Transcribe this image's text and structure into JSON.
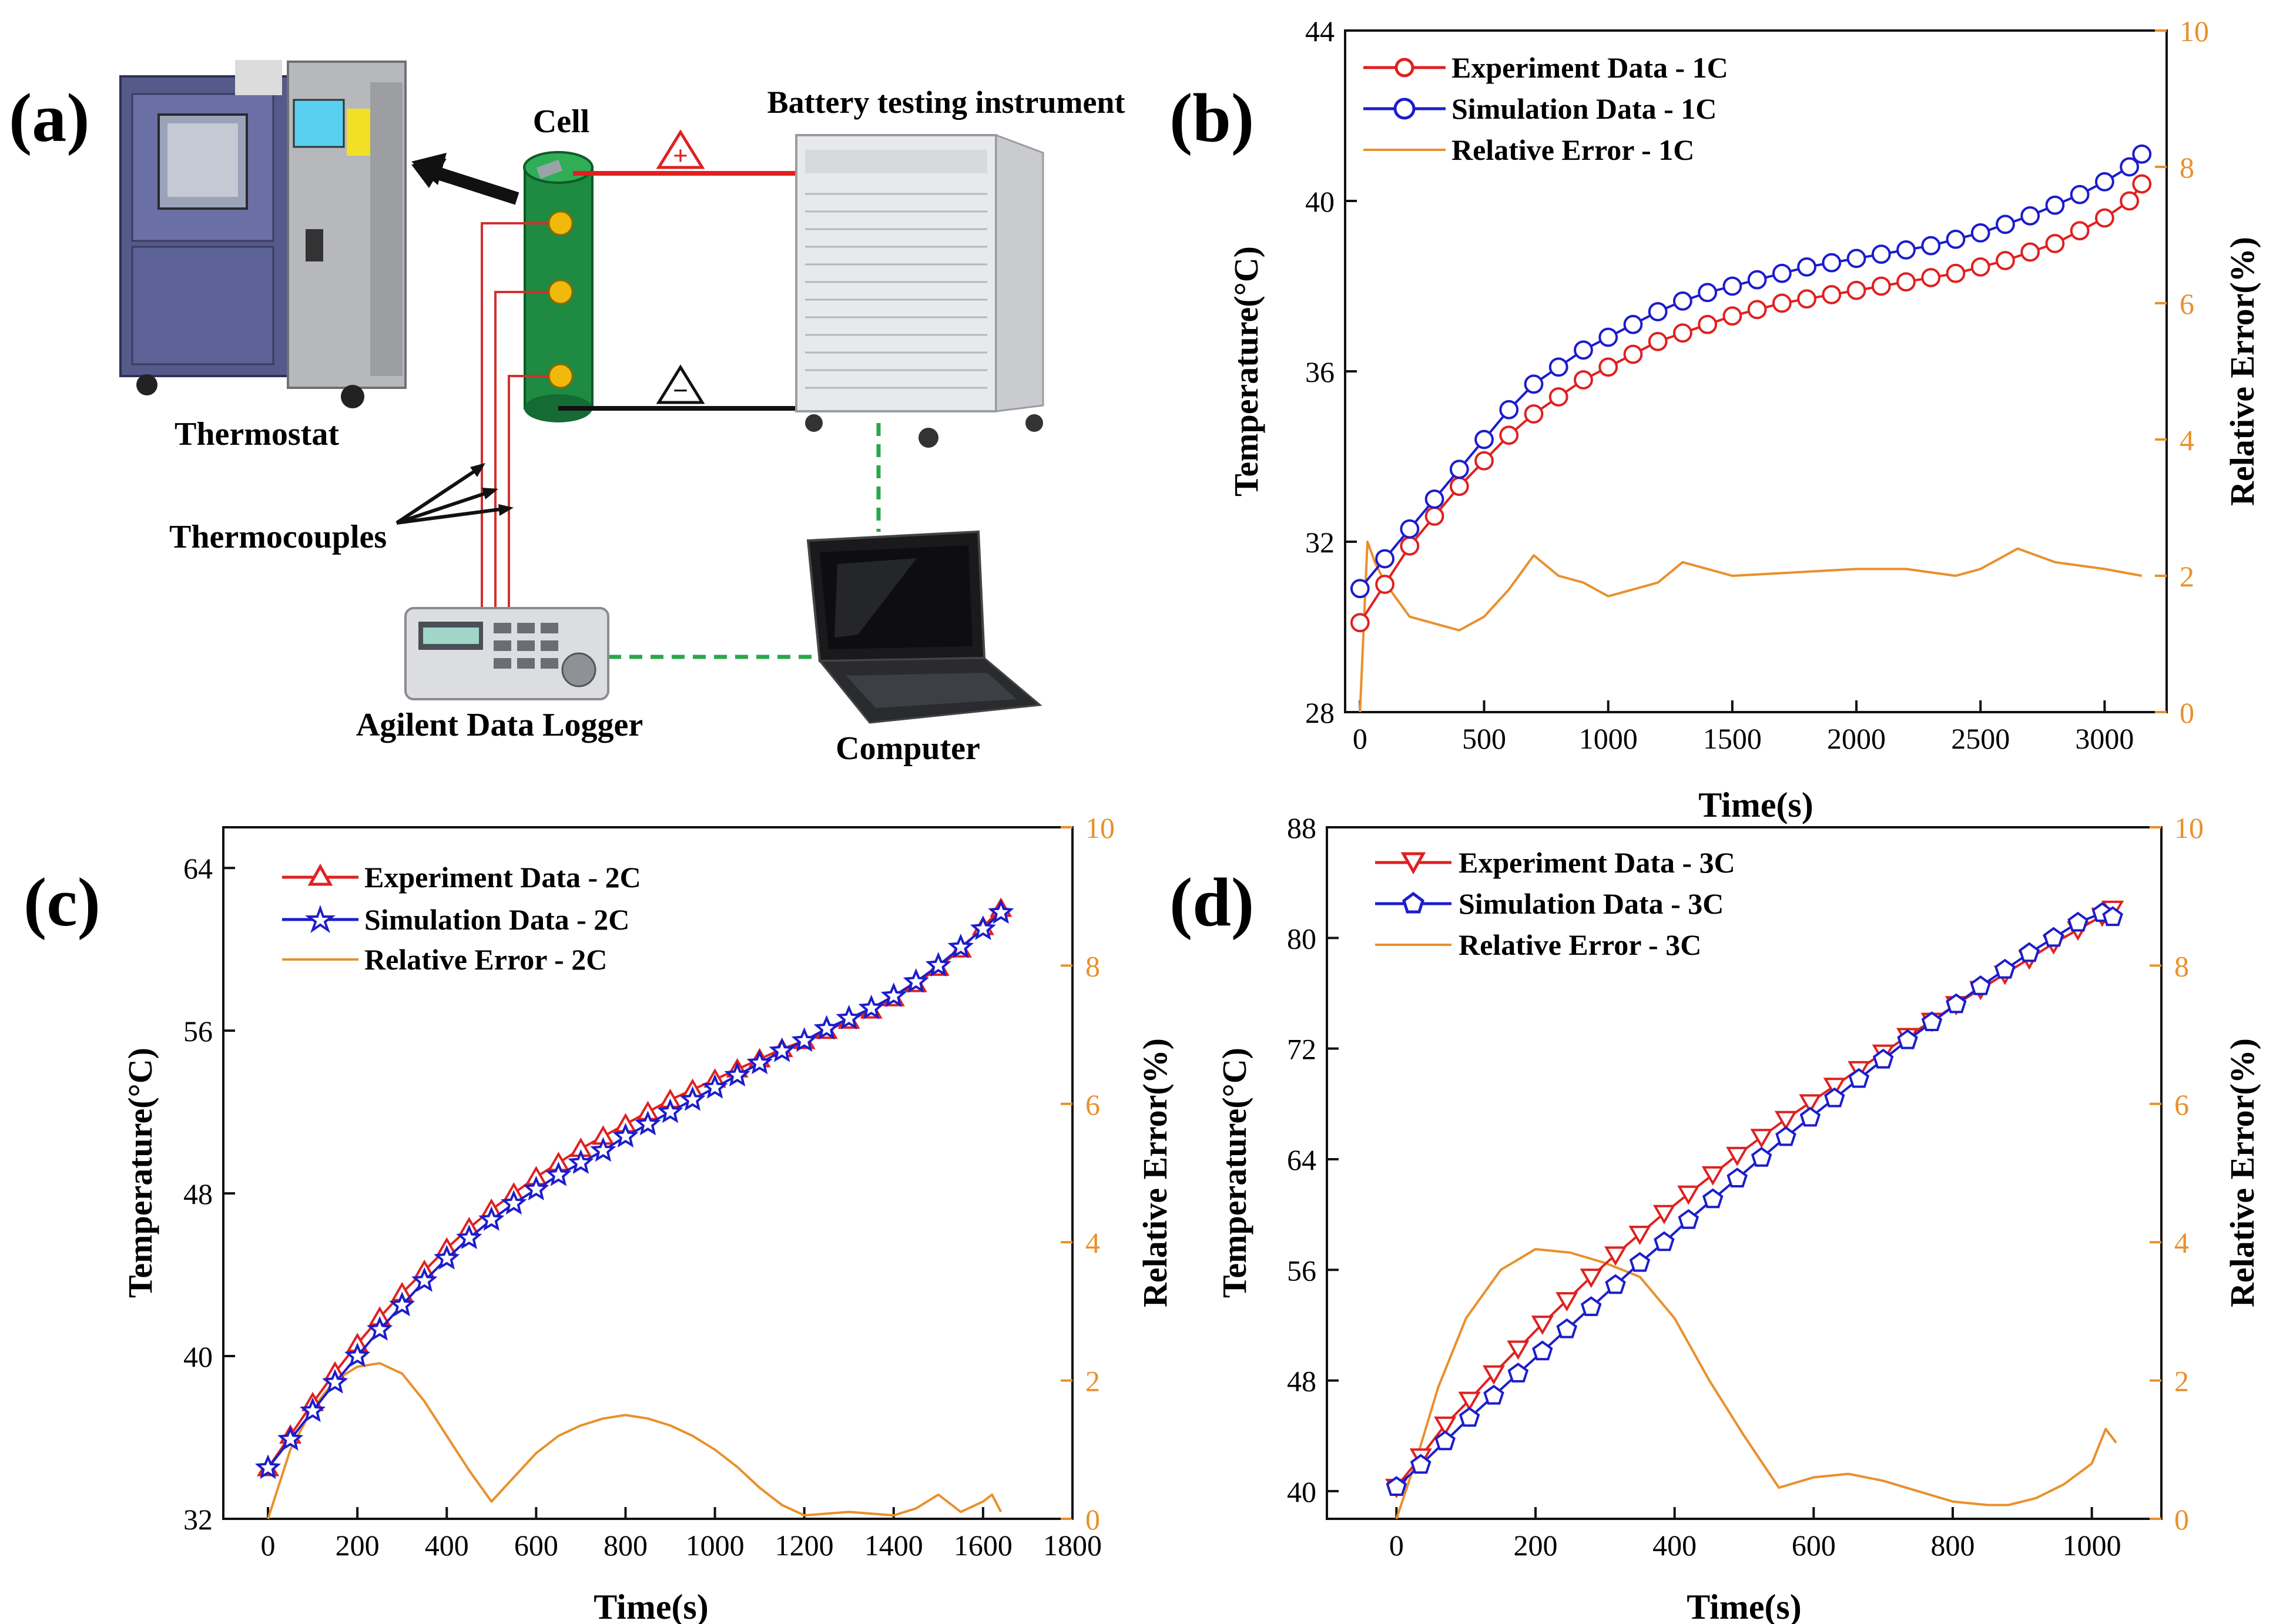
{
  "panel_a": {
    "label": "(a)",
    "thermostat_label": "Thermostat",
    "cell_label": "Cell",
    "instrument_label": "Battery testing instrument",
    "thermocouples_label": "Thermocouples",
    "logger_label": "Agilent Data Logger",
    "computer_label": "Computer",
    "plus_sign": "+",
    "minus_sign": "−"
  },
  "chart_data": [
    {
      "panel_label": "(b)",
      "type": "line",
      "xlabel": "Time(s)",
      "ylabel": "Temperature(°C)",
      "y2label": "Relative Error(%)",
      "xlim": [
        -60,
        3250
      ],
      "ylim": [
        28,
        44
      ],
      "y2lim": [
        0,
        10
      ],
      "xticks": [
        0,
        500,
        1000,
        1500,
        2000,
        2500,
        3000
      ],
      "yticks": [
        28,
        32,
        36,
        40,
        44
      ],
      "y2ticks": [
        0,
        2,
        4,
        6,
        8,
        10
      ],
      "legend_position": "top-left",
      "series": [
        {
          "name": "Experiment Data - 1C",
          "marker": "circle",
          "color": "#e02020",
          "x": [
            0,
            100,
            200,
            300,
            400,
            500,
            600,
            700,
            800,
            900,
            1000,
            1100,
            1200,
            1300,
            1400,
            1500,
            1600,
            1700,
            1800,
            1900,
            2000,
            2100,
            2200,
            2300,
            2400,
            2500,
            2600,
            2700,
            2800,
            2900,
            3000,
            3100,
            3150
          ],
          "y": [
            30.1,
            31.0,
            31.9,
            32.6,
            33.3,
            33.9,
            34.5,
            35.0,
            35.4,
            35.8,
            36.1,
            36.4,
            36.7,
            36.9,
            37.1,
            37.3,
            37.45,
            37.6,
            37.7,
            37.8,
            37.9,
            38.0,
            38.1,
            38.2,
            38.3,
            38.45,
            38.6,
            38.8,
            39.0,
            39.3,
            39.6,
            40.0,
            40.4
          ]
        },
        {
          "name": "Simulation Data - 1C",
          "marker": "circle",
          "color": "#1c1ccc",
          "x": [
            0,
            100,
            200,
            300,
            400,
            500,
            600,
            700,
            800,
            900,
            1000,
            1100,
            1200,
            1300,
            1400,
            1500,
            1600,
            1700,
            1800,
            1900,
            2000,
            2100,
            2200,
            2300,
            2400,
            2500,
            2600,
            2700,
            2800,
            2900,
            3000,
            3100,
            3150
          ],
          "y": [
            30.9,
            31.6,
            32.3,
            33.0,
            33.7,
            34.4,
            35.1,
            35.7,
            36.1,
            36.5,
            36.8,
            37.1,
            37.4,
            37.65,
            37.85,
            38.0,
            38.15,
            38.3,
            38.45,
            38.55,
            38.65,
            38.75,
            38.85,
            38.95,
            39.1,
            39.25,
            39.45,
            39.65,
            39.9,
            40.15,
            40.45,
            40.8,
            41.1
          ]
        },
        {
          "name": "Relative Error - 1C",
          "marker": "none",
          "color": "#e9902c",
          "axis": "right",
          "x": [
            0,
            30,
            60,
            100,
            200,
            300,
            400,
            500,
            600,
            700,
            800,
            900,
            1000,
            1200,
            1300,
            1500,
            2000,
            2200,
            2400,
            2500,
            2600,
            2650,
            2800,
            3000,
            3150
          ],
          "y": [
            0,
            2.5,
            2.2,
            1.9,
            1.4,
            1.3,
            1.2,
            1.4,
            1.8,
            2.3,
            2.0,
            1.9,
            1.7,
            1.9,
            2.2,
            2.0,
            2.1,
            2.1,
            2.0,
            2.1,
            2.3,
            2.4,
            2.2,
            2.1,
            2.0
          ]
        }
      ]
    },
    {
      "panel_label": "(c)",
      "type": "line",
      "xlabel": "Time(s)",
      "ylabel": "Temperature(°C)",
      "y2label": "Relative Error(%)",
      "xlim": [
        -100,
        1800
      ],
      "ylim": [
        32,
        66
      ],
      "y2lim": [
        0,
        10
      ],
      "xticks": [
        0,
        200,
        400,
        600,
        800,
        1000,
        1200,
        1400,
        1600,
        1800
      ],
      "yticks": [
        32,
        40,
        48,
        56,
        64
      ],
      "y2ticks": [
        0,
        2,
        4,
        6,
        8,
        10
      ],
      "legend_position": "top-left",
      "series": [
        {
          "name": "Experiment Data - 2C",
          "marker": "triangle-up",
          "color": "#e02020",
          "x": [
            0,
            50,
            100,
            150,
            200,
            250,
            300,
            350,
            400,
            450,
            500,
            550,
            600,
            650,
            700,
            750,
            800,
            850,
            900,
            950,
            1000,
            1050,
            1100,
            1150,
            1200,
            1250,
            1300,
            1350,
            1400,
            1450,
            1500,
            1550,
            1600,
            1640
          ],
          "y": [
            34.5,
            36.1,
            37.7,
            39.2,
            40.6,
            41.9,
            43.1,
            44.2,
            45.3,
            46.3,
            47.2,
            48.0,
            48.8,
            49.5,
            50.2,
            50.8,
            51.4,
            52.0,
            52.6,
            53.1,
            53.6,
            54.1,
            54.6,
            55.1,
            55.5,
            56.0,
            56.5,
            57.0,
            57.6,
            58.3,
            59.1,
            60.0,
            61.1,
            62.0
          ]
        },
        {
          "name": "Simulation Data - 2C",
          "marker": "star",
          "color": "#1c1ccc",
          "x": [
            0,
            50,
            100,
            150,
            200,
            250,
            300,
            350,
            400,
            450,
            500,
            550,
            600,
            650,
            700,
            750,
            800,
            850,
            900,
            950,
            1000,
            1050,
            1100,
            1150,
            1200,
            1250,
            1300,
            1350,
            1400,
            1450,
            1500,
            1550,
            1600,
            1640
          ],
          "y": [
            34.5,
            35.9,
            37.3,
            38.7,
            40.0,
            41.3,
            42.5,
            43.7,
            44.8,
            45.8,
            46.7,
            47.5,
            48.2,
            48.9,
            49.5,
            50.1,
            50.8,
            51.4,
            52.0,
            52.6,
            53.2,
            53.8,
            54.4,
            55.0,
            55.5,
            56.1,
            56.6,
            57.1,
            57.7,
            58.4,
            59.2,
            60.1,
            61.0,
            61.8
          ]
        },
        {
          "name": "Relative Error - 2C",
          "marker": "none",
          "color": "#e9902c",
          "axis": "right",
          "x": [
            0,
            50,
            100,
            150,
            200,
            250,
            300,
            350,
            400,
            450,
            500,
            550,
            600,
            650,
            700,
            750,
            800,
            850,
            900,
            950,
            1000,
            1050,
            1100,
            1150,
            1200,
            1300,
            1400,
            1450,
            1500,
            1550,
            1600,
            1620,
            1640
          ],
          "y": [
            0,
            1.0,
            1.6,
            2.0,
            2.2,
            2.25,
            2.1,
            1.7,
            1.2,
            0.7,
            0.25,
            0.6,
            0.95,
            1.2,
            1.35,
            1.45,
            1.5,
            1.45,
            1.35,
            1.2,
            1.0,
            0.75,
            0.45,
            0.2,
            0.05,
            0.1,
            0.05,
            0.15,
            0.35,
            0.1,
            0.25,
            0.35,
            0.1
          ]
        }
      ]
    },
    {
      "panel_label": "(d)",
      "type": "line",
      "xlabel": "Time(s)",
      "ylabel": "Temperature(°C)",
      "y2label": "Relative Error(%)",
      "xlim": [
        -100,
        1100
      ],
      "ylim": [
        38,
        88
      ],
      "y2lim": [
        0,
        10
      ],
      "xticks": [
        0,
        200,
        400,
        600,
        800,
        1000
      ],
      "yticks": [
        40,
        48,
        56,
        64,
        72,
        80,
        88
      ],
      "y2ticks": [
        0,
        2,
        4,
        6,
        8,
        10
      ],
      "legend_position": "top-left",
      "series": [
        {
          "name": "Experiment Data - 3C",
          "marker": "triangle-down",
          "color": "#e02020",
          "x": [
            0,
            35,
            70,
            105,
            140,
            175,
            210,
            245,
            280,
            315,
            350,
            385,
            420,
            455,
            490,
            525,
            560,
            595,
            630,
            665,
            700,
            735,
            770,
            805,
            840,
            875,
            910,
            945,
            980,
            1015,
            1030
          ],
          "y": [
            40.3,
            42.5,
            44.8,
            46.6,
            48.5,
            50.3,
            52.1,
            53.8,
            55.5,
            57.1,
            58.6,
            60.1,
            61.5,
            62.9,
            64.3,
            65.6,
            66.9,
            68.1,
            69.3,
            70.5,
            71.7,
            72.9,
            74.0,
            75.2,
            76.3,
            77.4,
            78.5,
            79.6,
            80.6,
            81.6,
            82.1
          ]
        },
        {
          "name": "Simulation Data - 3C",
          "marker": "pentagon",
          "color": "#1c1ccc",
          "x": [
            0,
            35,
            70,
            105,
            140,
            175,
            210,
            245,
            280,
            315,
            350,
            385,
            420,
            455,
            490,
            525,
            560,
            595,
            630,
            665,
            700,
            735,
            770,
            805,
            840,
            875,
            910,
            945,
            980,
            1015,
            1030
          ],
          "y": [
            40.3,
            41.9,
            43.6,
            45.3,
            46.9,
            48.5,
            50.1,
            51.7,
            53.3,
            54.9,
            56.5,
            58.0,
            59.6,
            61.1,
            62.6,
            64.1,
            65.6,
            67.0,
            68.4,
            69.8,
            71.2,
            72.6,
            73.9,
            75.2,
            76.5,
            77.7,
            78.9,
            80.0,
            81.1,
            81.8,
            81.5
          ]
        },
        {
          "name": "Relative Error - 3C",
          "marker": "none",
          "color": "#e9902c",
          "axis": "right",
          "x": [
            0,
            30,
            60,
            100,
            150,
            200,
            250,
            300,
            350,
            400,
            450,
            500,
            550,
            600,
            650,
            700,
            750,
            800,
            850,
            880,
            920,
            960,
            1000,
            1020,
            1035
          ],
          "y": [
            0,
            0.9,
            1.9,
            2.9,
            3.6,
            3.9,
            3.85,
            3.7,
            3.5,
            2.9,
            2.0,
            1.2,
            0.45,
            0.6,
            0.65,
            0.55,
            0.4,
            0.25,
            0.2,
            0.2,
            0.3,
            0.5,
            0.8,
            1.3,
            1.1
          ]
        }
      ]
    }
  ]
}
